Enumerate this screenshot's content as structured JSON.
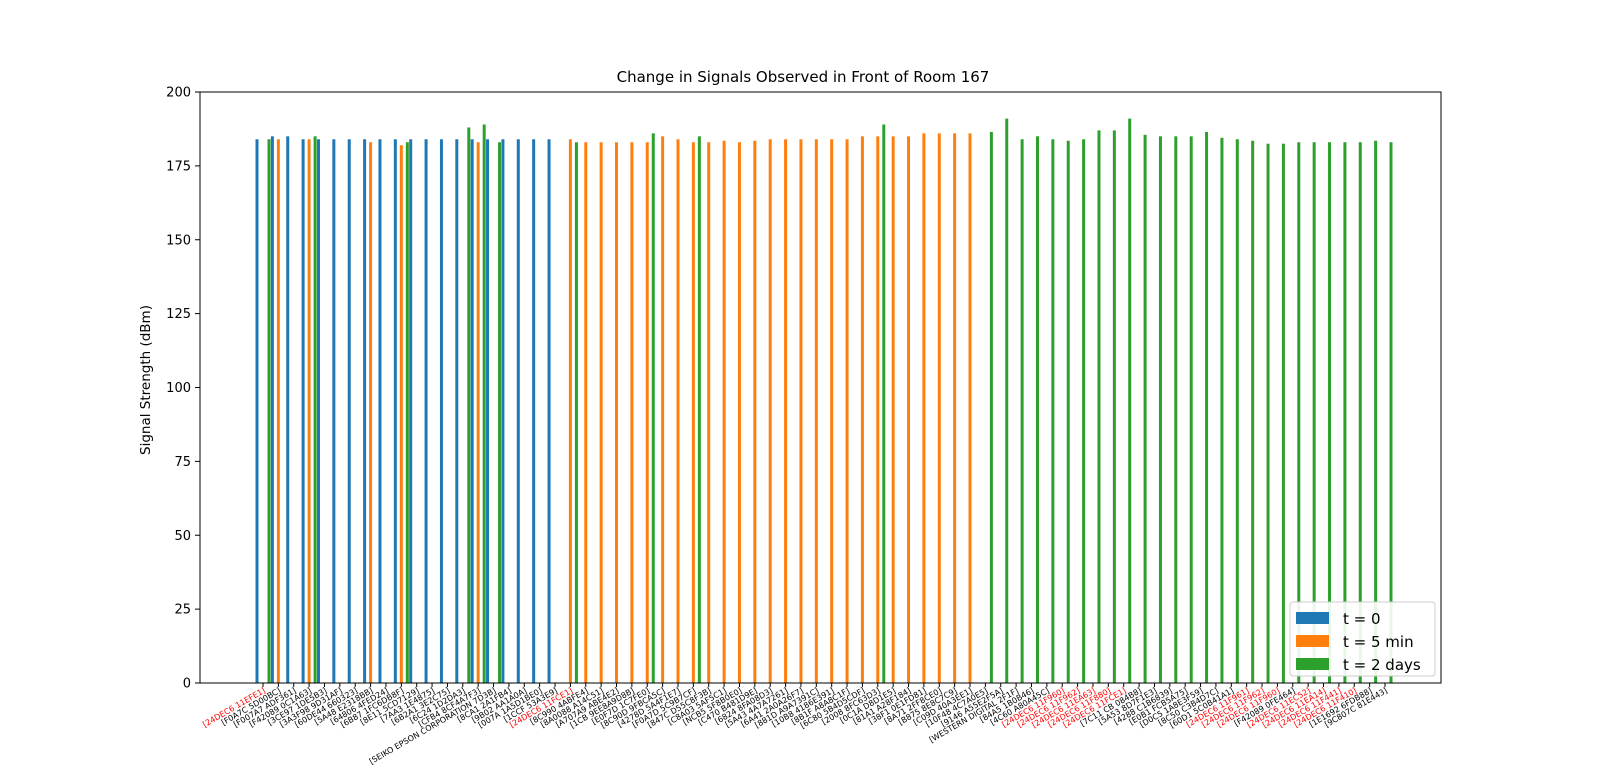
{
  "chart_data": {
    "type": "bar",
    "title": "Change in Signals Observed in Front of Room 167",
    "xlabel": "",
    "ylabel": "Signal Strength (dBm)",
    "ylim": [
      0,
      200
    ],
    "yticks": [
      0,
      25,
      50,
      75,
      100,
      125,
      150,
      175,
      200
    ],
    "legend_position": "bottom-right",
    "highlight_color": "#ff0000",
    "label_color": "#000000",
    "categories": [
      "[24DEC6 11EFE1]",
      "[F0A7C 5D00BC]",
      "[F007A7 ADF361]",
      "[F42089 0C1A63]",
      "[3CE97 1DE5B3]",
      "[3A3F98 9D31AF]",
      "[60DE44 660323]",
      "[5A48 E2318BB]",
      "[64806 4FED24]",
      "[6B87 1FC6DB8F]",
      "[8E11 5CD7129]",
      "[7AA3 1E4875]",
      "[6B2A1 3E2C75]",
      "[6C24 1D2DA3]",
      "[CFB4 8CF4A7F3]",
      "[SEIKO EPSON CORPORATION 7D3B]",
      "[8CA1 2A1FB4]",
      "[9B02 AA1A0A]",
      "[007A 1A5D1BE0]",
      "[1CCF 53A3E9]",
      "[24DEC6 11FCE1]",
      "[8C990 4ABFE4]",
      "[8A0088 A14C51]",
      "[A707A9 ABE4E2]",
      "[1CB 9EE8A9D8B]",
      "[E0F7D 1C7FE0]",
      "[8C90D 9FBCA5C]",
      "[4278D 5A4F1E7]",
      "[F0A7D 5C9B7CF]",
      "[847C D55C8F3B]",
      "[C8A03 5AF5C1]",
      "[NCB5 5F8B0E0]",
      "[C470 B481D9E]",
      "[6824 8FA08D3]",
      "[5A43 4A7A7261]",
      "[6A41 2A0A26F7]",
      "[881D A9A7391C]",
      "[10B8 4186E391]",
      "[8B1F A8A8C1F]",
      "[6C80 5B4D5CDF]",
      "[2008 8FC63D3]",
      "[0C1A D8D1E5]",
      "[81A1 A28F184]",
      "[38F1 0E1FD81]",
      "[8A71 2FF8CE0]",
      "[B875 8E8C7C9]",
      "[C09D 40A3EE1]",
      "[10F48 4C7A0E5]",
      "[9146 A55E2F5A]",
      "[WESTERN DIGITAL 2F1F]",
      "[84A5 1B0B46]",
      "[4C60 A80A45C]",
      "[24DEC6 11F960]",
      "[24DEC6 11F962]",
      "[24DEC6 11EA63]",
      "[24DEC6 11F880]",
      "[24DEC6 11FCE1]",
      "[7C11 CB 084B8]",
      "[5A53 8D7F1E3]",
      "[4288 C1B6839]",
      "[E0B1 FCB5A75]",
      "[D0C5 1A8E3F59]",
      "[8C50 C3B4D7C]",
      "[60D1 5C0B41A1]",
      "[24DEC6 11F961]",
      "[24DEC6 11F962]",
      "[24DEC6 11F960]",
      "[F42089 0FE464]",
      "[24DEC6 11EC52]",
      "[24DEC6 11EA14]",
      "[24DEC6 11F441]",
      "[24DEC6 11F410]",
      "[1E1692 6FDB88]",
      "[9C807C 81E443]"
    ],
    "highlighted_categories": [
      0,
      20,
      52,
      53,
      54,
      55,
      56,
      64,
      65,
      66,
      68,
      69,
      70,
      71
    ],
    "series": [
      {
        "name": "t = 0",
        "color": "#1f77b4",
        "values": [
          184,
          185,
          185,
          184,
          184,
          184,
          184,
          184,
          184,
          184,
          184,
          184,
          184,
          184,
          184,
          184,
          184,
          184,
          184,
          184,
          null,
          null,
          null,
          null,
          null,
          null,
          null,
          null,
          null,
          null,
          null,
          null,
          null,
          null,
          null,
          null,
          null,
          null,
          null,
          null,
          null,
          null,
          null,
          null,
          null,
          null,
          null,
          null,
          null,
          null,
          null,
          null,
          null,
          null,
          null,
          null,
          null,
          null,
          null,
          null,
          null,
          null,
          null,
          null,
          null,
          null,
          null,
          null,
          null,
          null,
          null,
          null,
          null,
          null
        ]
      },
      {
        "name": "t = 5 min",
        "color": "#ff7f0e",
        "values": [
          null,
          184,
          null,
          184,
          null,
          null,
          null,
          183,
          null,
          182,
          null,
          null,
          null,
          null,
          183,
          null,
          null,
          null,
          null,
          null,
          184,
          183,
          183,
          183,
          183,
          183,
          185,
          184,
          183,
          183,
          183.5,
          183,
          183.5,
          184,
          184,
          184,
          184,
          184,
          184,
          185,
          185,
          185,
          185,
          186,
          186,
          186,
          186,
          null,
          null,
          null,
          null,
          null,
          null,
          null,
          null,
          null,
          null,
          null,
          null,
          null,
          null,
          null,
          null,
          null,
          null,
          null,
          null,
          null,
          null,
          null,
          null,
          null,
          null,
          null
        ]
      },
      {
        "name": "t = 2 days",
        "color": "#2ca02c",
        "values": [
          184,
          null,
          null,
          185,
          null,
          null,
          null,
          null,
          null,
          183,
          null,
          null,
          null,
          188,
          189,
          183,
          null,
          null,
          null,
          null,
          183,
          null,
          null,
          null,
          null,
          186,
          null,
          null,
          185,
          null,
          null,
          null,
          null,
          null,
          null,
          null,
          null,
          null,
          null,
          null,
          189,
          null,
          null,
          null,
          null,
          null,
          null,
          186.5,
          191,
          184,
          185,
          184,
          183.5,
          184,
          187,
          187,
          191,
          185.5,
          185,
          185,
          185,
          186.5,
          184.5,
          184,
          183.5,
          182.5,
          182.5,
          183,
          183,
          183,
          183,
          183,
          183.5,
          183
        ]
      }
    ]
  }
}
